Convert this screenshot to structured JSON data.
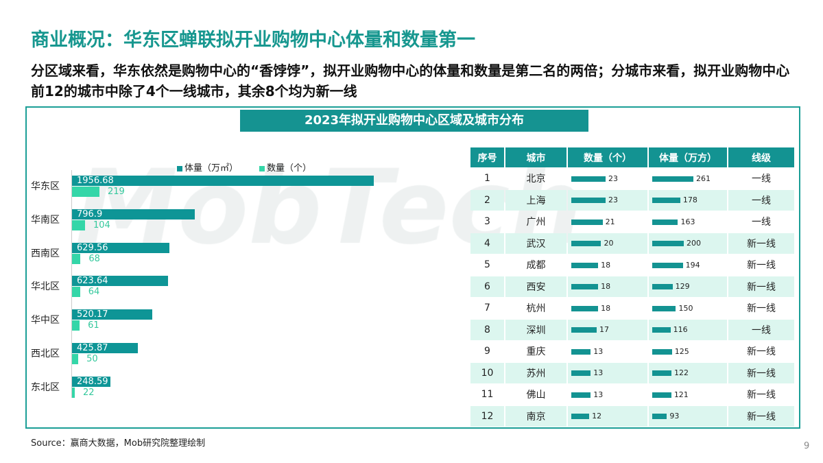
{
  "title": "商业概况：华东区蝉联拟开业购物中心体量和数量第一",
  "subtitle": "分区域来看，华东依然是购物中心的“香饽饽”，拟开业购物中心的体量和数量是第二名的两倍；分城市来看，拟开业购物中心前12的城市中除了4个一线城市，其余8个均为新一线",
  "watermark": "MobTech",
  "chart_data": [
    {
      "type": "bar",
      "orientation": "horizontal",
      "title": "2023年拟开业购物中心区域及城市分布",
      "categories": [
        "华东区",
        "华南区",
        "西南区",
        "华北区",
        "华中区",
        "西北区",
        "东北区"
      ],
      "series": [
        {
          "name": "体量（万㎡）",
          "color": "#0e9596",
          "values": [
            1956.68,
            796.9,
            629.56,
            623.64,
            520.17,
            425.87,
            248.59
          ]
        },
        {
          "name": "数量（个）",
          "color": "#34d6a8",
          "values": [
            219,
            104,
            68,
            64,
            61,
            50,
            22
          ]
        }
      ],
      "legend": "top",
      "grid": false
    },
    {
      "type": "table",
      "columns": [
        "序号",
        "城市",
        "数量（个）",
        "体量（万方）",
        "线级"
      ],
      "rows": [
        [
          1,
          "北京",
          23,
          261,
          "一线"
        ],
        [
          2,
          "上海",
          23,
          178,
          "一线"
        ],
        [
          3,
          "广州",
          21,
          163,
          "一线"
        ],
        [
          4,
          "武汉",
          20,
          200,
          "新一线"
        ],
        [
          5,
          "成都",
          18,
          194,
          "新一线"
        ],
        [
          6,
          "西安",
          18,
          129,
          "新一线"
        ],
        [
          7,
          "杭州",
          18,
          150,
          "新一线"
        ],
        [
          8,
          "深圳",
          17,
          116,
          "一线"
        ],
        [
          9,
          "重庆",
          13,
          125,
          "新一线"
        ],
        [
          10,
          "苏州",
          13,
          122,
          "新一线"
        ],
        [
          11,
          "佛山",
          13,
          121,
          "新一线"
        ],
        [
          12,
          "南京",
          12,
          93,
          "新一线"
        ]
      ]
    }
  ],
  "source": "Source：赢商大数据，Mob研究院整理绘制",
  "page_number": "9"
}
